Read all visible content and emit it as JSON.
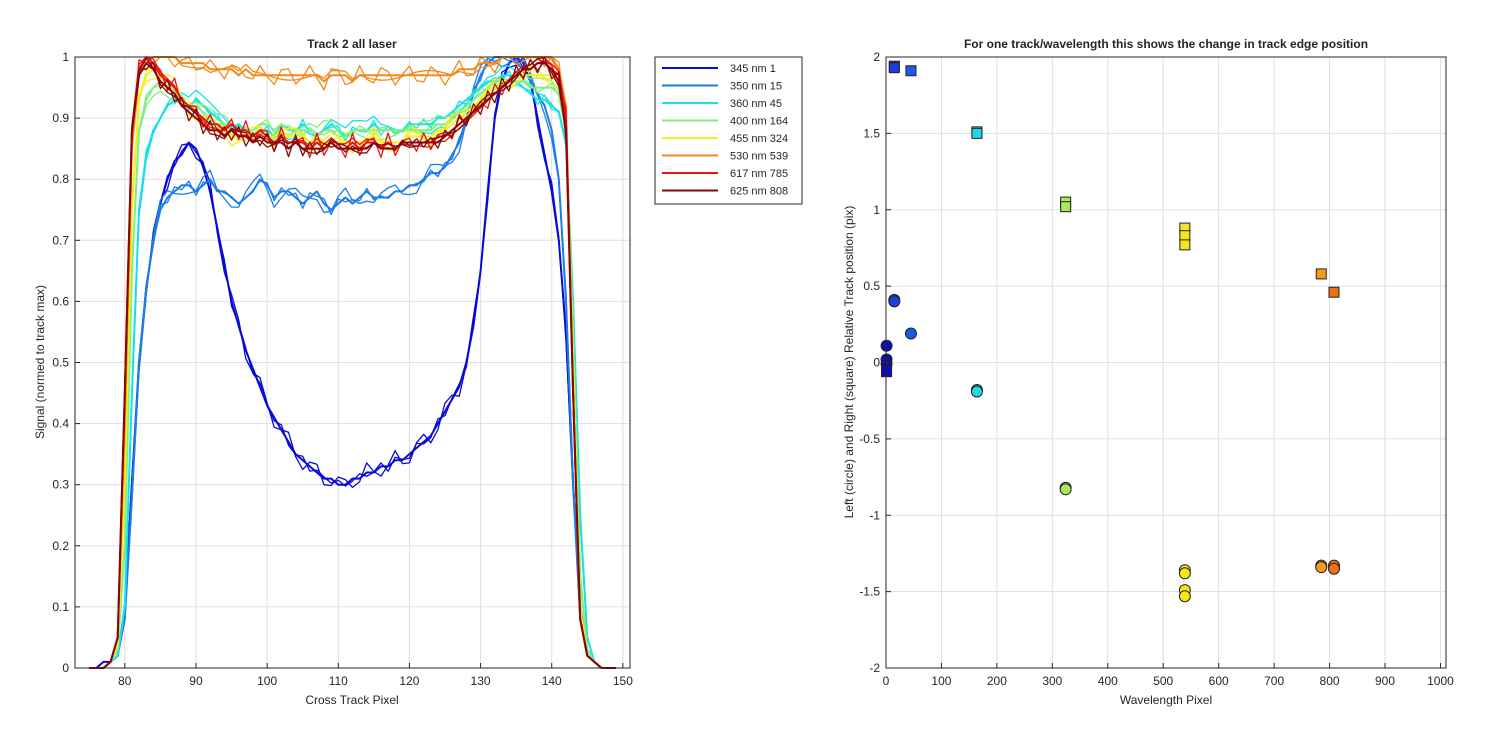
{
  "chart_data": [
    {
      "type": "line",
      "title": "Track 2  all laser",
      "xlabel": "Cross Track Pixel",
      "ylabel": "Signal (normed to track max)",
      "xlim": [
        73,
        151
      ],
      "ylim": [
        0,
        1
      ],
      "xticks": [
        80,
        90,
        100,
        110,
        120,
        130,
        140,
        150
      ],
      "yticks": [
        0,
        0.1,
        0.2,
        0.3,
        0.4,
        0.5,
        0.6,
        0.7,
        0.8,
        0.9,
        1
      ],
      "ytick_labels": [
        "0",
        "0.1",
        "0.2",
        "0.3",
        "0.4",
        "0.5",
        "0.6",
        "0.7",
        "0.8",
        "0.9",
        "1"
      ],
      "grid": true,
      "legend_position": "outside-top-right",
      "x": [
        75,
        76,
        77,
        78,
        79,
        80,
        81,
        82,
        83,
        84,
        85,
        86,
        87,
        88,
        89,
        90,
        91,
        92,
        93,
        94,
        95,
        96,
        97,
        98,
        99,
        100,
        101,
        102,
        103,
        104,
        105,
        106,
        107,
        108,
        109,
        110,
        111,
        112,
        113,
        114,
        115,
        116,
        117,
        118,
        119,
        120,
        121,
        122,
        123,
        124,
        125,
        126,
        127,
        128,
        129,
        130,
        131,
        132,
        133,
        134,
        135,
        136,
        137,
        138,
        139,
        140,
        141,
        142,
        143,
        144,
        145,
        146,
        147,
        148,
        149
      ],
      "series": [
        {
          "name": "345 nm 1",
          "color": "#0a0ad8",
          "values": [
            0,
            0,
            0.01,
            0.01,
            0.02,
            0.1,
            0.3,
            0.5,
            0.62,
            0.7,
            0.76,
            0.8,
            0.83,
            0.84,
            0.86,
            0.85,
            0.82,
            0.78,
            0.72,
            0.66,
            0.6,
            0.56,
            0.52,
            0.49,
            0.46,
            0.43,
            0.41,
            0.39,
            0.37,
            0.35,
            0.34,
            0.33,
            0.32,
            0.31,
            0.31,
            0.3,
            0.3,
            0.31,
            0.31,
            0.32,
            0.32,
            0.33,
            0.33,
            0.34,
            0.34,
            0.35,
            0.36,
            0.37,
            0.38,
            0.4,
            0.42,
            0.44,
            0.46,
            0.5,
            0.56,
            0.65,
            0.78,
            0.9,
            0.96,
            0.99,
            1,
            0.99,
            0.96,
            0.9,
            0.84,
            0.78,
            0.7,
            0.55,
            0.3,
            0.1,
            0.03,
            0.01,
            0,
            0,
            0
          ]
        },
        {
          "name": "350 nm 15",
          "color": "#1b7de8",
          "values": [
            0,
            0,
            0,
            0.01,
            0.02,
            0.08,
            0.28,
            0.5,
            0.62,
            0.7,
            0.75,
            0.77,
            0.78,
            0.79,
            0.79,
            0.78,
            0.79,
            0.8,
            0.78,
            0.78,
            0.77,
            0.76,
            0.77,
            0.78,
            0.8,
            0.79,
            0.77,
            0.78,
            0.78,
            0.77,
            0.76,
            0.77,
            0.78,
            0.76,
            0.75,
            0.76,
            0.77,
            0.76,
            0.77,
            0.78,
            0.77,
            0.77,
            0.77,
            0.78,
            0.78,
            0.79,
            0.79,
            0.8,
            0.81,
            0.81,
            0.82,
            0.84,
            0.86,
            0.9,
            0.94,
            0.97,
            0.99,
            1,
            1,
            1,
            0.99,
            0.98,
            0.96,
            0.94,
            0.92,
            0.88,
            0.8,
            0.6,
            0.3,
            0.08,
            0.02,
            0.01,
            0,
            0,
            0
          ]
        },
        {
          "name": "360 nm 45",
          "color": "#19e0e8",
          "values": [
            0,
            0,
            0,
            0.01,
            0.02,
            0.1,
            0.45,
            0.75,
            0.84,
            0.88,
            0.9,
            0.92,
            0.93,
            0.93,
            0.92,
            0.93,
            0.92,
            0.91,
            0.9,
            0.89,
            0.88,
            0.89,
            0.88,
            0.87,
            0.88,
            0.88,
            0.87,
            0.89,
            0.88,
            0.88,
            0.89,
            0.88,
            0.87,
            0.88,
            0.89,
            0.88,
            0.87,
            0.88,
            0.88,
            0.88,
            0.89,
            0.88,
            0.88,
            0.88,
            0.88,
            0.89,
            0.89,
            0.89,
            0.89,
            0.9,
            0.9,
            0.91,
            0.92,
            0.93,
            0.94,
            0.95,
            0.96,
            0.96,
            0.97,
            0.97,
            0.96,
            0.95,
            0.94,
            0.93,
            0.93,
            0.92,
            0.91,
            0.86,
            0.6,
            0.25,
            0.05,
            0.01,
            0,
            0,
            0
          ]
        },
        {
          "name": "400 nm 164",
          "color": "#7ef07e",
          "values": [
            0,
            0,
            0,
            0.01,
            0.03,
            0.2,
            0.65,
            0.88,
            0.93,
            0.95,
            0.96,
            0.95,
            0.94,
            0.93,
            0.92,
            0.92,
            0.91,
            0.9,
            0.89,
            0.89,
            0.88,
            0.88,
            0.88,
            0.88,
            0.89,
            0.89,
            0.88,
            0.89,
            0.88,
            0.88,
            0.88,
            0.88,
            0.87,
            0.88,
            0.88,
            0.87,
            0.87,
            0.88,
            0.88,
            0.88,
            0.88,
            0.88,
            0.88,
            0.88,
            0.88,
            0.88,
            0.88,
            0.88,
            0.88,
            0.89,
            0.89,
            0.9,
            0.91,
            0.92,
            0.93,
            0.94,
            0.95,
            0.96,
            0.96,
            0.96,
            0.96,
            0.96,
            0.95,
            0.95,
            0.95,
            0.95,
            0.94,
            0.88,
            0.55,
            0.15,
            0.03,
            0.01,
            0,
            0,
            0
          ]
        },
        {
          "name": "455 nm 324",
          "color": "#f4f01e",
          "values": [
            0,
            0,
            0,
            0.01,
            0.04,
            0.3,
            0.75,
            0.93,
            0.97,
            0.98,
            0.97,
            0.96,
            0.95,
            0.93,
            0.92,
            0.91,
            0.9,
            0.89,
            0.88,
            0.88,
            0.87,
            0.87,
            0.87,
            0.87,
            0.88,
            0.87,
            0.87,
            0.88,
            0.87,
            0.87,
            0.87,
            0.86,
            0.87,
            0.86,
            0.86,
            0.86,
            0.86,
            0.86,
            0.86,
            0.86,
            0.87,
            0.86,
            0.86,
            0.86,
            0.86,
            0.87,
            0.87,
            0.87,
            0.87,
            0.88,
            0.88,
            0.89,
            0.9,
            0.91,
            0.92,
            0.93,
            0.94,
            0.95,
            0.96,
            0.96,
            0.97,
            0.97,
            0.97,
            0.97,
            0.97,
            0.97,
            0.96,
            0.9,
            0.5,
            0.1,
            0.02,
            0.01,
            0,
            0,
            0
          ]
        },
        {
          "name": "530 nm 539",
          "color": "#f08a1c",
          "values": [
            0,
            0,
            0,
            0.01,
            0.05,
            0.4,
            0.85,
            0.97,
            0.99,
            1,
            1,
            1,
            1,
            0.99,
            0.99,
            0.99,
            0.99,
            0.98,
            0.98,
            0.98,
            0.98,
            0.97,
            0.98,
            0.97,
            0.97,
            0.97,
            0.97,
            0.97,
            0.97,
            0.97,
            0.97,
            0.97,
            0.97,
            0.96,
            0.97,
            0.97,
            0.97,
            0.96,
            0.97,
            0.97,
            0.97,
            0.97,
            0.97,
            0.97,
            0.97,
            0.97,
            0.97,
            0.97,
            0.97,
            0.97,
            0.97,
            0.97,
            0.98,
            0.98,
            0.98,
            0.99,
            0.99,
            0.99,
            1,
            1,
            1,
            1,
            1,
            1,
            1,
            1,
            0.98,
            0.92,
            0.45,
            0.08,
            0.02,
            0.01,
            0,
            0,
            0
          ]
        },
        {
          "name": "617 nm 785",
          "color": "#e81212",
          "values": [
            0,
            0,
            0,
            0.01,
            0.05,
            0.45,
            0.88,
            0.98,
            1,
            0.99,
            0.97,
            0.96,
            0.95,
            0.93,
            0.92,
            0.91,
            0.9,
            0.89,
            0.89,
            0.88,
            0.89,
            0.88,
            0.88,
            0.87,
            0.88,
            0.87,
            0.86,
            0.87,
            0.86,
            0.86,
            0.86,
            0.85,
            0.86,
            0.85,
            0.86,
            0.85,
            0.85,
            0.86,
            0.85,
            0.86,
            0.86,
            0.85,
            0.86,
            0.85,
            0.86,
            0.86,
            0.86,
            0.86,
            0.86,
            0.87,
            0.87,
            0.88,
            0.89,
            0.9,
            0.91,
            0.92,
            0.93,
            0.94,
            0.95,
            0.96,
            0.97,
            0.98,
            0.98,
            0.99,
            0.99,
            0.98,
            0.97,
            0.9,
            0.45,
            0.08,
            0.02,
            0.01,
            0,
            0,
            0
          ]
        },
        {
          "name": "625 nm 808",
          "color": "#8a0606",
          "values": [
            0,
            0,
            0,
            0.01,
            0.05,
            0.45,
            0.88,
            0.97,
            0.99,
            0.98,
            0.96,
            0.95,
            0.94,
            0.92,
            0.91,
            0.9,
            0.89,
            0.88,
            0.88,
            0.87,
            0.88,
            0.87,
            0.87,
            0.86,
            0.87,
            0.86,
            0.86,
            0.86,
            0.85,
            0.86,
            0.85,
            0.85,
            0.85,
            0.85,
            0.86,
            0.85,
            0.85,
            0.85,
            0.85,
            0.85,
            0.86,
            0.85,
            0.85,
            0.85,
            0.86,
            0.86,
            0.86,
            0.86,
            0.86,
            0.86,
            0.87,
            0.88,
            0.89,
            0.9,
            0.91,
            0.92,
            0.93,
            0.94,
            0.95,
            0.96,
            0.97,
            0.98,
            0.98,
            0.99,
            0.99,
            0.98,
            0.96,
            0.88,
            0.45,
            0.08,
            0.02,
            0.01,
            0,
            0,
            0
          ]
        }
      ]
    },
    {
      "type": "scatter",
      "title": "For one track/wavelength this shows the change in track edge position",
      "xlabel": "Wavelength Pixel",
      "ylabel": "Left (circle) and Right (square) Relative Track position (pix)",
      "xlim": [
        0,
        1010
      ],
      "ylim": [
        -2,
        2
      ],
      "xticks": [
        0,
        100,
        200,
        300,
        400,
        500,
        600,
        700,
        800,
        900,
        1000
      ],
      "yticks": [
        -2,
        -1.5,
        -1,
        -0.5,
        0,
        0.5,
        1,
        1.5,
        2
      ],
      "ytick_labels": [
        "-2",
        "-1.5",
        "-1",
        "-0.5",
        "0",
        "0.5",
        "1",
        "1.5",
        "2"
      ],
      "grid": true,
      "series": [
        {
          "marker": "circle",
          "points": [
            {
              "x": 1,
              "y": 0.11,
              "color": "#0b0bc0"
            },
            {
              "x": 1,
              "y": 0.02,
              "color": "#0b0bc0"
            },
            {
              "x": 1,
              "y": -0.01,
              "color": "#0b0bc0"
            },
            {
              "x": 15,
              "y": 0.41,
              "color": "#1a3ee0"
            },
            {
              "x": 15,
              "y": 0.4,
              "color": "#1a3ee0"
            },
            {
              "x": 45,
              "y": 0.19,
              "color": "#1a5ce6"
            },
            {
              "x": 164,
              "y": -0.18,
              "color": "#1fd8e8"
            },
            {
              "x": 164,
              "y": -0.19,
              "color": "#1fd8e8"
            },
            {
              "x": 324,
              "y": -0.82,
              "color": "#a8e85a"
            },
            {
              "x": 324,
              "y": -0.83,
              "color": "#a8e85a"
            },
            {
              "x": 539,
              "y": -1.36,
              "color": "#f5e61c"
            },
            {
              "x": 539,
              "y": -1.38,
              "color": "#f5e61c"
            },
            {
              "x": 539,
              "y": -1.49,
              "color": "#f5e61c"
            },
            {
              "x": 539,
              "y": -1.53,
              "color": "#f5e61c"
            },
            {
              "x": 785,
              "y": -1.33,
              "color": "#f59a1c"
            },
            {
              "x": 785,
              "y": -1.34,
              "color": "#f59a1c"
            },
            {
              "x": 808,
              "y": -1.33,
              "color": "#f07018"
            },
            {
              "x": 808,
              "y": -1.35,
              "color": "#f07018"
            }
          ]
        },
        {
          "marker": "square",
          "points": [
            {
              "x": 1,
              "y": -0.03,
              "color": "#0b0bc0"
            },
            {
              "x": 1,
              "y": -0.06,
              "color": "#0b0bc0"
            },
            {
              "x": 15,
              "y": 1.94,
              "color": "#1a3ee0"
            },
            {
              "x": 15,
              "y": 1.93,
              "color": "#1a3ee0"
            },
            {
              "x": 45,
              "y": 1.91,
              "color": "#1a5ce6"
            },
            {
              "x": 164,
              "y": 1.51,
              "color": "#1fd8e8"
            },
            {
              "x": 164,
              "y": 1.5,
              "color": "#1fd8e8"
            },
            {
              "x": 324,
              "y": 1.05,
              "color": "#a8e85a"
            },
            {
              "x": 324,
              "y": 1.02,
              "color": "#a8e85a"
            },
            {
              "x": 539,
              "y": 0.88,
              "color": "#f5e61c"
            },
            {
              "x": 539,
              "y": 0.83,
              "color": "#f5e61c"
            },
            {
              "x": 539,
              "y": 0.77,
              "color": "#f5e61c"
            },
            {
              "x": 785,
              "y": 0.58,
              "color": "#f59a1c"
            },
            {
              "x": 808,
              "y": 0.46,
              "color": "#f07018"
            }
          ]
        }
      ]
    }
  ]
}
